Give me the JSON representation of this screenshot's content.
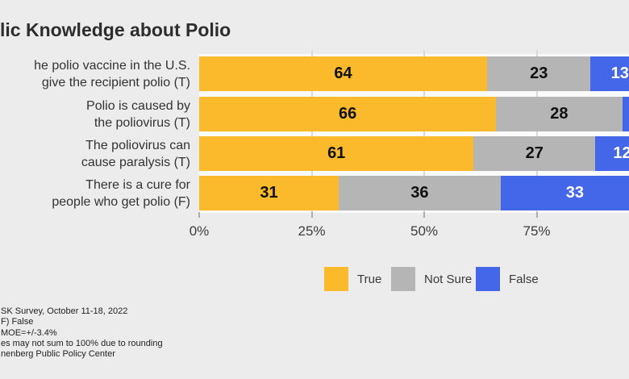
{
  "page": {
    "background": "#ECECEC"
  },
  "chart_data": {
    "type": "bar",
    "variant": "horizontal-stacked-percent",
    "title": "lic Knowledge about Polio",
    "categories": [
      {
        "lines": [
          "he polio vaccine in the U.S.",
          "give the recipient polio (T)"
        ]
      },
      {
        "lines": [
          "Polio is caused by",
          "the poliovirus (T)"
        ]
      },
      {
        "lines": [
          "The poliovirus can",
          "cause paralysis (T)"
        ]
      },
      {
        "lines": [
          "There is a cure for",
          "people who get polio (F)"
        ]
      }
    ],
    "series": [
      {
        "name": "True",
        "color": "#FBBA2B",
        "label_color": "#101010",
        "values": [
          64,
          66,
          61,
          31
        ],
        "value_labels": [
          "64",
          "66",
          "61",
          "31"
        ]
      },
      {
        "name": "Not Sure",
        "color": "#B5B5B5",
        "label_color": "#101010",
        "values": [
          23,
          28,
          27,
          36
        ],
        "value_labels": [
          "23",
          "28",
          "27",
          "36"
        ]
      },
      {
        "name": "False",
        "color": "#4466E8",
        "label_color": "#FFFFFF",
        "values": [
          13,
          6,
          12,
          33
        ],
        "value_labels": [
          "13",
          "",
          "12",
          "33"
        ]
      }
    ],
    "xlim": [
      0,
      100
    ],
    "x_ticks": [
      {
        "pct": 0,
        "label": "0%"
      },
      {
        "pct": 25,
        "label": "25%"
      },
      {
        "pct": 50,
        "label": "50%"
      },
      {
        "pct": 75,
        "label": "75%"
      }
    ],
    "grid": true,
    "legend_position": "bottom"
  },
  "footer": {
    "lines": [
      "SK Survey, October 11-18, 2022",
      "F) False",
      "MOE=+/-3.4%",
      "es may not sum to 100% due to rounding",
      "nenberg Public Policy Center"
    ]
  }
}
